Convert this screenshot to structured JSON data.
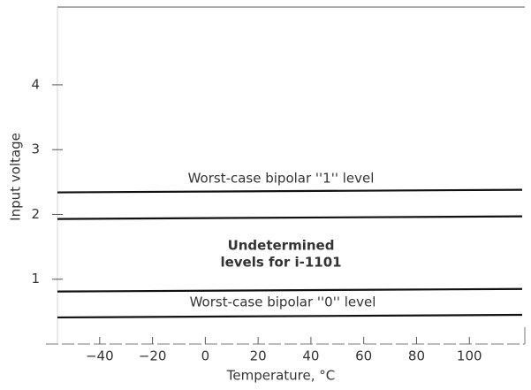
{
  "chart_data": {
    "type": "line",
    "xlabel": "Temperature, °C",
    "ylabel": "Input voltage",
    "annotations": [
      "Worst-case bipolar ''1'' level",
      "Undetermined",
      "levels for i-1101",
      "Worst-case bipolar ''0'' level"
    ],
    "x": [
      -56,
      120
    ],
    "series": [
      {
        "color": "#111111",
        "values": [
          2.34,
          2.38
        ]
      },
      {
        "color": "#111111",
        "values": [
          1.93,
          1.97
        ]
      },
      {
        "color": "#111111",
        "values": [
          0.81,
          0.85
        ]
      },
      {
        "color": "#111111",
        "values": [
          0.41,
          0.45
        ]
      }
    ],
    "xlim": [
      -56,
      121
    ],
    "ylim": [
      0,
      5.2
    ],
    "xticks": [
      {
        "value": -40,
        "label": "−40"
      },
      {
        "value": -20,
        "label": "−20"
      },
      0,
      20,
      40,
      60,
      80,
      100
    ],
    "yticks": [
      1,
      2,
      3,
      4
    ],
    "grid": false
  }
}
